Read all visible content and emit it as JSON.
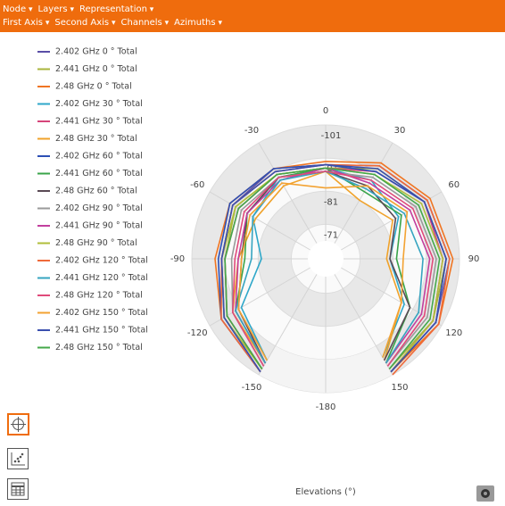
{
  "toolbar": {
    "row1": [
      "Node",
      "Layers",
      "Representation"
    ],
    "row2": [
      "First Axis",
      "Second Axis",
      "Channels",
      "Azimuths"
    ]
  },
  "chart_data": {
    "type": "polar-line",
    "x_label": "Elevations (°)",
    "x": [
      -150,
      -120,
      -90,
      -60,
      -30,
      0,
      30,
      60,
      90,
      120,
      150
    ],
    "xlim": [
      -180,
      180
    ],
    "xticks": [
      0,
      30,
      60,
      90,
      120,
      150,
      -180,
      -150,
      -120,
      -90,
      -60,
      -30
    ],
    "ylim": [
      -66,
      -101
    ],
    "yticks": [
      -101,
      -91,
      -81,
      -71
    ],
    "series": [
      {
        "name": "2.402 GHz 0 ° Total",
        "color": "#5a4ea6",
        "values": [
          -100,
          -96,
          -92,
          -93,
          -92,
          -89,
          -93,
          -96,
          -98,
          -99,
          -100
        ]
      },
      {
        "name": "2.441 GHz 0 ° Total",
        "color": "#a9b43c",
        "values": [
          -99,
          -95,
          -91,
          -92,
          -90,
          -88,
          -92,
          -95,
          -97,
          -98,
          -99
        ]
      },
      {
        "name": "2.48 GHz 0 ° Total",
        "color": "#f07522",
        "values": [
          -100,
          -97,
          -94,
          -94,
          -92,
          -90,
          -94,
          -97,
          -99,
          -100,
          -100
        ]
      },
      {
        "name": "2.402 GHz 30 ° Total",
        "color": "#2ea7c9",
        "values": [
          -96,
          -90,
          -80,
          -86,
          -89,
          -88,
          -88,
          -86,
          -80,
          -88,
          -95
        ]
      },
      {
        "name": "2.441 GHz 30 ° Total",
        "color": "#d6457a",
        "values": [
          -99,
          -95,
          -91,
          -91,
          -90,
          -88,
          -91,
          -95,
          -96,
          -98,
          -100
        ]
      },
      {
        "name": "2.48 GHz 30 ° Total",
        "color": "#f0a22a",
        "values": [
          -97,
          -93,
          -87,
          -85,
          -86,
          -87,
          -81,
          -84,
          -79,
          -87,
          -96
        ]
      },
      {
        "name": "2.402 GHz 60 ° Total",
        "color": "#2d4fb5",
        "values": [
          -100,
          -97,
          -93,
          -94,
          -92,
          -89,
          -91,
          -95,
          -97,
          -99,
          -100
        ]
      },
      {
        "name": "2.441 GHz 60 ° Total",
        "color": "#3aa44a",
        "values": [
          -97,
          -92,
          -85,
          -88,
          -89,
          -88,
          -84,
          -87,
          -82,
          -90,
          -97
        ]
      },
      {
        "name": "2.48 GHz 60 ° Total",
        "color": "#5a4a55",
        "values": [
          -97,
          -91,
          -86,
          -88,
          -89,
          -87,
          -86,
          -85,
          -80,
          -90,
          -96
        ]
      },
      {
        "name": "2.402 GHz 90 ° Total",
        "color": "#9a9a9a",
        "values": [
          -98,
          -93,
          -89,
          -90,
          -89,
          -87,
          -89,
          -92,
          -94,
          -96,
          -98
        ]
      },
      {
        "name": "2.441 GHz 90 ° Total",
        "color": "#c23f9e",
        "values": [
          -97,
          -92,
          -87,
          -88,
          -88,
          -88,
          -87,
          -90,
          -92,
          -94,
          -97
        ]
      },
      {
        "name": "2.48 GHz 90 ° Total",
        "color": "#b0bd3a",
        "values": [
          -99,
          -96,
          -92,
          -92,
          -90,
          -88,
          -90,
          -94,
          -96,
          -98,
          -100
        ]
      },
      {
        "name": "2.402 GHz 120 ° Total",
        "color": "#ef6a3a",
        "values": [
          -100,
          -97,
          -92,
          -93,
          -91,
          -89,
          -93,
          -96,
          -98,
          -100,
          -101
        ]
      },
      {
        "name": "2.441 GHz 120 ° Total",
        "color": "#36a4c0",
        "values": [
          -97,
          -92,
          -83,
          -86,
          -88,
          -87,
          -85,
          -88,
          -90,
          -93,
          -97
        ]
      },
      {
        "name": "2.48 GHz 120 ° Total",
        "color": "#e04a7a",
        "values": [
          -98,
          -93,
          -88,
          -89,
          -89,
          -87,
          -88,
          -91,
          -93,
          -95,
          -98
        ]
      },
      {
        "name": "2.402 GHz 150 ° Total",
        "color": "#f3a232",
        "values": [
          -96,
          -91,
          -86,
          -87,
          -87,
          -82,
          -86,
          -89,
          -84,
          -87,
          -95
        ]
      },
      {
        "name": "2.441 GHz 150 ° Total",
        "color": "#3a4fae",
        "values": [
          -100,
          -96,
          -92,
          -93,
          -91,
          -89,
          -92,
          -95,
          -97,
          -99,
          -100
        ]
      },
      {
        "name": "2.48 GHz 150 ° Total",
        "color": "#44a84a",
        "values": [
          -99,
          -95,
          -91,
          -91,
          -90,
          -88,
          -90,
          -93,
          -95,
          -97,
          -99
        ]
      }
    ]
  }
}
